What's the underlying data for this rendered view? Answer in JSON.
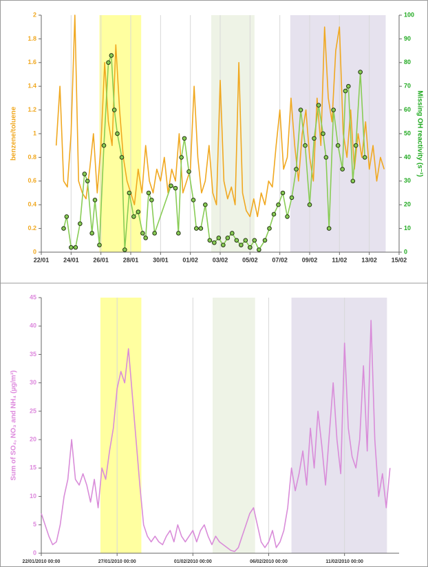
{
  "chart_data": [
    {
      "type": "line",
      "y_label": "benzene/toluene",
      "y2_label": "Missing OH reactivity (s⁻¹)",
      "y_label_color": "#f0a820",
      "y2_label_color": "#22aa22",
      "xlim": [
        22,
        46
      ],
      "xticks": [
        {
          "value": 22,
          "label": "22/01"
        },
        {
          "value": 24,
          "label": "24/01"
        },
        {
          "value": 26,
          "label": "26/01"
        },
        {
          "value": 28,
          "label": "28/01"
        },
        {
          "value": 30,
          "label": "30/01"
        },
        {
          "value": 32,
          "label": "01/02"
        },
        {
          "value": 34,
          "label": "03/02"
        },
        {
          "value": 36,
          "label": "05/02"
        },
        {
          "value": 38,
          "label": "07/02"
        },
        {
          "value": 40,
          "label": "09/02"
        },
        {
          "value": 42,
          "label": "11/02"
        },
        {
          "value": 44,
          "label": "13/02"
        },
        {
          "value": 46,
          "label": "15/02"
        }
      ],
      "ylim": [
        0,
        2
      ],
      "yticks": [
        0,
        0.2,
        0.4,
        0.6,
        0.8,
        1,
        1.2,
        1.4,
        1.6,
        1.8,
        2
      ],
      "y2lim": [
        0,
        100
      ],
      "y2ticks": [
        0,
        10,
        20,
        30,
        40,
        50,
        60,
        70,
        80,
        90,
        100
      ],
      "grid": "x",
      "shaded_spans": [
        {
          "start": 25.9,
          "end": 28.7,
          "color": "#ffffa0"
        },
        {
          "start": 33.4,
          "end": 36.3,
          "color": "#eef3e6"
        },
        {
          "start": 38.7,
          "end": 45.1,
          "color": "#e6e2ee"
        }
      ],
      "series": [
        {
          "color": "#f0a820",
          "marker": "none",
          "x": [
            23.0,
            23.25,
            23.5,
            23.75,
            24.0,
            24.25,
            24.5,
            24.75,
            25.0,
            25.25,
            25.5,
            25.75,
            26.0,
            26.25,
            26.5,
            26.75,
            27.0,
            27.25,
            27.5,
            27.75,
            28.0,
            28.25,
            28.5,
            28.75,
            29.0,
            29.25,
            29.5,
            29.75,
            30.0,
            30.25,
            30.5,
            30.75,
            31.0,
            31.25,
            31.5,
            31.75,
            32.0,
            32.25,
            32.5,
            32.75,
            33.0,
            33.25,
            33.5,
            33.75,
            34.0,
            34.25,
            34.5,
            34.75,
            35.0,
            35.25,
            35.5,
            35.75,
            36.0,
            36.25,
            36.5,
            36.75,
            37.0,
            37.25,
            37.5,
            37.75,
            38.0,
            38.25,
            38.5,
            38.75,
            39.0,
            39.25,
            39.5,
            39.75,
            40.0,
            40.25,
            40.5,
            40.75,
            41.0,
            41.25,
            41.5,
            41.75,
            42.0,
            42.25,
            42.5,
            42.75,
            43.0,
            43.25,
            43.5,
            43.75,
            44.0,
            44.25,
            44.5,
            44.75,
            45.0
          ],
          "values": [
            0.9,
            1.4,
            0.6,
            0.55,
            1.0,
            2.0,
            0.6,
            0.5,
            0.45,
            0.7,
            1.0,
            0.5,
            0.9,
            1.6,
            1.1,
            0.9,
            1.75,
            1.2,
            0.8,
            0.6,
            0.5,
            0.4,
            0.7,
            0.5,
            0.9,
            0.6,
            0.5,
            0.7,
            0.6,
            0.8,
            0.5,
            0.7,
            0.6,
            1.0,
            0.5,
            0.6,
            0.7,
            1.4,
            0.8,
            0.5,
            0.6,
            0.9,
            0.5,
            0.4,
            1.45,
            0.6,
            0.45,
            0.55,
            0.4,
            1.6,
            0.5,
            0.35,
            0.3,
            0.45,
            0.3,
            0.5,
            0.4,
            0.6,
            0.55,
            0.9,
            1.2,
            0.7,
            0.8,
            1.3,
            0.9,
            0.6,
            1.0,
            1.2,
            0.8,
            0.6,
            1.3,
            0.9,
            1.9,
            1.3,
            1.1,
            1.7,
            1.9,
            1.0,
            0.8,
            1.2,
            0.7,
            1.0,
            0.8,
            1.1,
            0.7,
            0.9,
            0.6,
            0.8,
            0.7
          ]
        },
        {
          "color": "#88cc55",
          "marker": "circle",
          "marker_edge": "#223311",
          "axis": "y2",
          "x": [
            23.5,
            23.7,
            24.0,
            24.3,
            24.6,
            24.9,
            25.1,
            25.4,
            25.6,
            25.9,
            26.2,
            26.5,
            26.7,
            26.9,
            27.1,
            27.4,
            27.6,
            27.9,
            28.2,
            28.5,
            28.8,
            29.0,
            29.2,
            29.4,
            29.6,
            30.7,
            31.0,
            31.2,
            31.4,
            31.6,
            31.9,
            32.2,
            32.4,
            32.7,
            33.0,
            33.3,
            33.6,
            33.9,
            34.2,
            34.5,
            34.8,
            35.1,
            35.4,
            35.7,
            36.0,
            36.3,
            36.6,
            37.0,
            37.3,
            37.6,
            37.9,
            38.2,
            38.5,
            38.8,
            39.1,
            39.4,
            39.7,
            40.0,
            40.3,
            40.6,
            40.9,
            41.1,
            41.3,
            41.6,
            41.9,
            42.2,
            42.4,
            42.6,
            42.9,
            43.1,
            43.4,
            43.7
          ],
          "values": [
            10,
            15,
            2,
            2,
            12,
            33,
            30,
            8,
            22,
            3,
            45,
            80,
            83,
            60,
            50,
            40,
            1,
            25,
            15,
            17,
            8,
            6,
            25,
            22,
            8,
            28,
            27,
            8,
            40,
            48,
            34,
            22,
            10,
            10,
            20,
            5,
            4,
            6,
            3,
            6,
            8,
            5,
            3,
            5,
            2,
            5,
            1,
            5,
            10,
            16,
            20,
            25,
            15,
            23,
            35,
            60,
            45,
            20,
            48,
            62,
            50,
            40,
            10,
            60,
            45,
            35,
            68,
            70,
            30,
            45,
            76,
            40
          ]
        }
      ]
    },
    {
      "type": "line",
      "y_label": "Sum of SO₄, NO₃ and NH₄ (µg/m³)",
      "y_label_color": "#dd88dd",
      "xlim": [
        22,
        45.6
      ],
      "xticks": [
        {
          "value": 22,
          "label": "22/01/2010 00:00"
        },
        {
          "value": 27,
          "label": "27/01/2010 00:00"
        },
        {
          "value": 32,
          "label": "01/02/2010 00:00"
        },
        {
          "value": 37,
          "label": "06/02/2010 00:00"
        },
        {
          "value": 42,
          "label": "11/02/2010 00:00"
        }
      ],
      "ylim": [
        0,
        45
      ],
      "yticks": [
        0,
        5,
        10,
        15,
        20,
        25,
        30,
        35,
        40,
        45
      ],
      "grid": "x",
      "shaded_spans": [
        {
          "start": 25.9,
          "end": 28.6,
          "color": "#ffffa0"
        },
        {
          "start": 33.3,
          "end": 36.1,
          "color": "#eef3e6"
        },
        {
          "start": 38.5,
          "end": 44.8,
          "color": "#e6e2ee"
        }
      ],
      "series": [
        {
          "color": "#d98cd9",
          "marker": "none",
          "x": [
            22.0,
            22.25,
            22.5,
            22.75,
            23.0,
            23.25,
            23.5,
            23.75,
            24.0,
            24.25,
            24.5,
            24.75,
            25.0,
            25.25,
            25.5,
            25.75,
            26.0,
            26.25,
            26.5,
            26.75,
            27.0,
            27.25,
            27.5,
            27.75,
            28.0,
            28.25,
            28.5,
            28.75,
            29.0,
            29.25,
            29.5,
            29.75,
            30.0,
            30.25,
            30.5,
            30.75,
            31.0,
            31.25,
            31.5,
            31.75,
            32.0,
            32.25,
            32.5,
            32.75,
            33.0,
            33.25,
            33.5,
            33.75,
            34.0,
            34.25,
            34.5,
            34.75,
            35.0,
            35.25,
            35.5,
            35.75,
            36.0,
            36.25,
            36.5,
            36.75,
            37.0,
            37.25,
            37.5,
            37.75,
            38.0,
            38.25,
            38.5,
            38.75,
            39.0,
            39.25,
            39.5,
            39.75,
            40.0,
            40.25,
            40.5,
            40.75,
            41.0,
            41.25,
            41.5,
            41.75,
            42.0,
            42.25,
            42.5,
            42.75,
            43.0,
            43.25,
            43.5,
            43.75,
            44.0,
            44.25,
            44.5,
            44.75,
            45.0
          ],
          "values": [
            7,
            5,
            3,
            1.5,
            2,
            5,
            10,
            13,
            20,
            13,
            12,
            14,
            12,
            9,
            13,
            8,
            15,
            13,
            18,
            22,
            29,
            32,
            30,
            36,
            28,
            20,
            12,
            5,
            3,
            2,
            3,
            2,
            1.5,
            3,
            4,
            2,
            5,
            3,
            2,
            3,
            4,
            2,
            4,
            5,
            3,
            1.5,
            3,
            2,
            1.5,
            1,
            0.5,
            0.3,
            1,
            3,
            5,
            7,
            8,
            5,
            2,
            1,
            2,
            4,
            1,
            2,
            4,
            8,
            15,
            11,
            14,
            18,
            12,
            22,
            15,
            25,
            19,
            12,
            21,
            30,
            20,
            14,
            37,
            22,
            17,
            15,
            20,
            33,
            18,
            41,
            20,
            10,
            14,
            8,
            15
          ]
        }
      ]
    }
  ]
}
